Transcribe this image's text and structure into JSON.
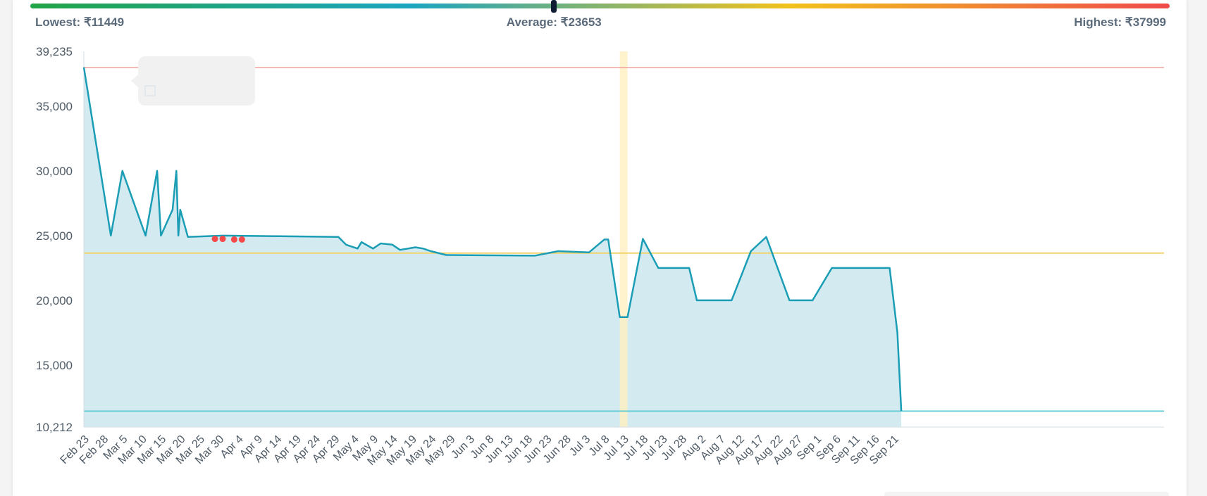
{
  "price_range": {
    "lowest_label": "Lowest: ₹11449",
    "average_label": "Average: ₹23653",
    "highest_label": "Highest: ₹37999",
    "lowest": 11449,
    "average": 23653,
    "highest": 37999,
    "gradient_colors": [
      "#22a447",
      "#1ba5c0",
      "#f2c21b",
      "#ef4a4a"
    ]
  },
  "colors": {
    "line": "#1a9db5",
    "area": "#d3ebf0",
    "highest_line": "#f4a5a2",
    "average_line": "#f2d36b",
    "lowest_line": "#4ec6d3",
    "highlight_band": "#fff0c0",
    "marker": "#f44a4a"
  },
  "chart_data": {
    "type": "area",
    "xlabel": "",
    "ylabel": "",
    "ylim": [
      10212,
      39235
    ],
    "y_ticks": [
      "39,235",
      "35,000",
      "30,000",
      "25,000",
      "20,000",
      "15,000",
      "10,212"
    ],
    "y_tick_values": [
      39235,
      35000,
      30000,
      25000,
      20000,
      15000,
      10212
    ],
    "x_ticks": [
      "Feb 23",
      "Feb 28",
      "Mar 5",
      "Mar 10",
      "Mar 15",
      "Mar 20",
      "Mar 25",
      "Mar 30",
      "Apr 4",
      "Apr 9",
      "Apr 14",
      "Apr 19",
      "Apr 24",
      "Apr 29",
      "May 4",
      "May 9",
      "May 14",
      "May 19",
      "May 24",
      "May 29",
      "Jun 3",
      "Jun 8",
      "Jun 13",
      "Jun 18",
      "Jun 23",
      "Jun 28",
      "Jul 3",
      "Jul 8",
      "Jul 13",
      "Jul 18",
      "Jul 23",
      "Jul 28",
      "Aug 2",
      "Aug 7",
      "Aug 12",
      "Aug 17",
      "Aug 22",
      "Aug 27",
      "Sep 1",
      "Sep 6",
      "Sep 11",
      "Sep 16",
      "Sep 21"
    ],
    "reference_lines": [
      {
        "label": "highest",
        "value": 37999
      },
      {
        "label": "average",
        "value": 23653
      },
      {
        "label": "lowest",
        "value": 11449
      }
    ],
    "highlight_range": [
      "Jul 12",
      "Jul 14"
    ],
    "series": [
      {
        "values": [
          [
            "Feb 23",
            37999
          ],
          [
            "Mar 2",
            25000
          ],
          [
            "Mar 5",
            30000
          ],
          [
            "Mar 11",
            25000
          ],
          [
            "Mar 14",
            30000
          ],
          [
            "Mar 15",
            25000
          ],
          [
            "Mar 18",
            27000
          ],
          [
            "Mar 19",
            30000
          ],
          [
            "Mar 19.5",
            25000
          ],
          [
            "Mar 20",
            27000
          ],
          [
            "Mar 22",
            24900
          ],
          [
            "Mar 31",
            25000
          ],
          [
            "Apr 15",
            24950
          ],
          [
            "Apr 30",
            24900
          ],
          [
            "May 2",
            24300
          ],
          [
            "May 5",
            24000
          ],
          [
            "May 6",
            24500
          ],
          [
            "May 9",
            24000
          ],
          [
            "May 11",
            24400
          ],
          [
            "May 14",
            24300
          ],
          [
            "May 16",
            23900
          ],
          [
            "May 20",
            24100
          ],
          [
            "May 22",
            24000
          ],
          [
            "May 24",
            23800
          ],
          [
            "May 28",
            23500
          ],
          [
            "Jun 20",
            23450
          ],
          [
            "Jun 26",
            23800
          ],
          [
            "Jul 4",
            23700
          ],
          [
            "Jul 8",
            24700
          ],
          [
            "Jul 9",
            24700
          ],
          [
            "Jul 12",
            18700
          ],
          [
            "Jul 14",
            18700
          ],
          [
            "Jul 18",
            24750
          ],
          [
            "Jul 22",
            22500
          ],
          [
            "Jul 30",
            22500
          ],
          [
            "Aug 1",
            20000
          ],
          [
            "Aug 10",
            20000
          ],
          [
            "Aug 15",
            23800
          ],
          [
            "Aug 19",
            24900
          ],
          [
            "Aug 25",
            20000
          ],
          [
            "Aug 31",
            20000
          ],
          [
            "Sep 5",
            22500
          ],
          [
            "Sep 20",
            22500
          ],
          [
            "Sep 22",
            17500
          ],
          [
            "Sep 23",
            11449
          ]
        ]
      }
    ],
    "markers": [
      [
        "Mar 29",
        24750
      ],
      [
        "Mar 31",
        24750
      ],
      [
        "Apr 3",
        24700
      ],
      [
        "Apr 5",
        24700
      ]
    ]
  }
}
